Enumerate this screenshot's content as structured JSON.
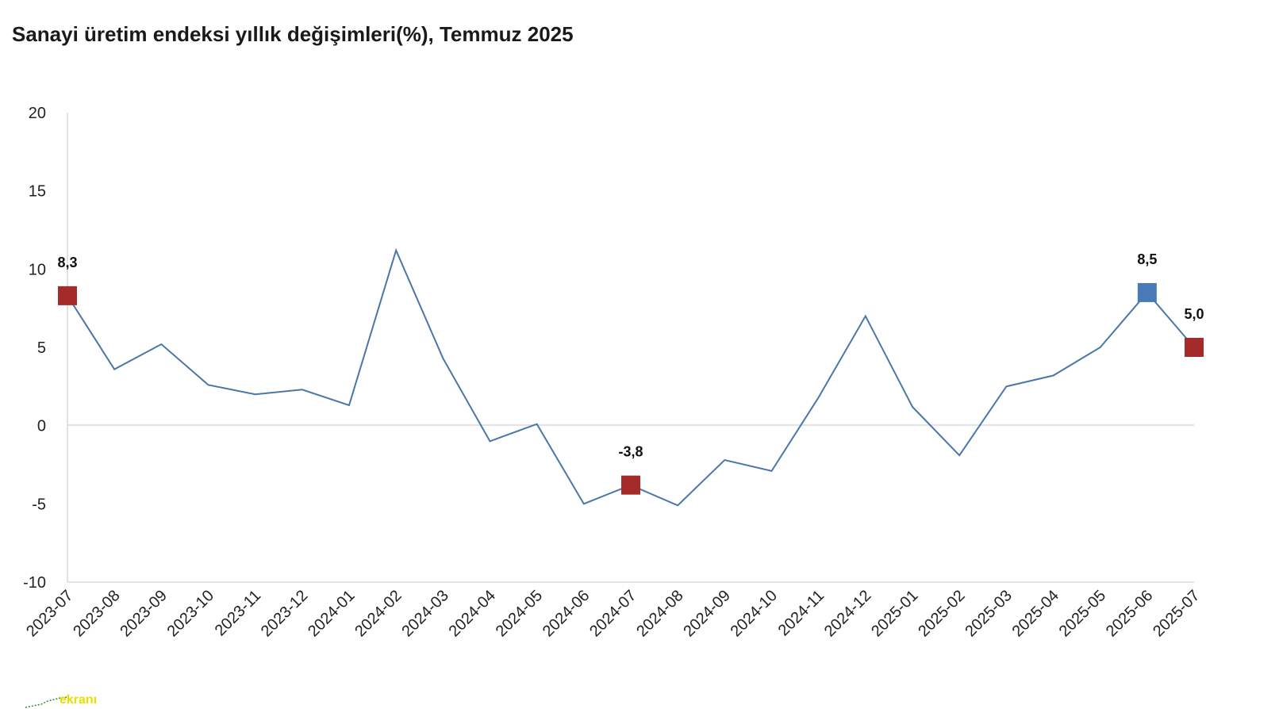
{
  "chart_data": {
    "type": "line",
    "title": "Sanayi üretim endeksi yıllık değişimleri(%), Temmuz 2025",
    "xlabel": "",
    "ylabel": "",
    "ylim": [
      -10,
      20
    ],
    "yticks": [
      "20",
      "15",
      "10",
      "5",
      "0",
      "-5",
      "-10"
    ],
    "categories": [
      "2023-07",
      "2023-08",
      "2023-09",
      "2023-10",
      "2023-11",
      "2023-12",
      "2024-01",
      "2024-02",
      "2024-03",
      "2024-04",
      "2024-05",
      "2024-06",
      "2024-07",
      "2024-08",
      "2024-09",
      "2024-10",
      "2024-11",
      "2024-12",
      "2025-01",
      "2025-02",
      "2025-03",
      "2025-04",
      "2025-05",
      "2025-06",
      "2025-07"
    ],
    "series": [
      {
        "values": [
          8.3,
          3.6,
          5.2,
          2.6,
          2.0,
          2.3,
          1.3,
          11.2,
          4.3,
          -1.0,
          0.1,
          -5.0,
          -3.8,
          -5.1,
          -2.2,
          -2.9,
          1.8,
          7.0,
          1.2,
          -1.9,
          2.5,
          3.2,
          5.0,
          8.5,
          5.0
        ],
        "color": "#4a76a8"
      }
    ],
    "highlights": [
      {
        "category": "2023-07",
        "value": 8.3,
        "label": "8,3",
        "color": "#a52a2a"
      },
      {
        "category": "2024-07",
        "value": -3.8,
        "label": "-3,8",
        "color": "#a52a2a"
      },
      {
        "category": "2025-06",
        "value": 8.5,
        "label": "8,5",
        "color": "#4a7ab5"
      },
      {
        "category": "2025-07",
        "value": 5.0,
        "label": "5,0",
        "color": "#a52a2a"
      }
    ],
    "grid": false,
    "legend": "none"
  },
  "logo": {
    "text": "ekranı"
  }
}
